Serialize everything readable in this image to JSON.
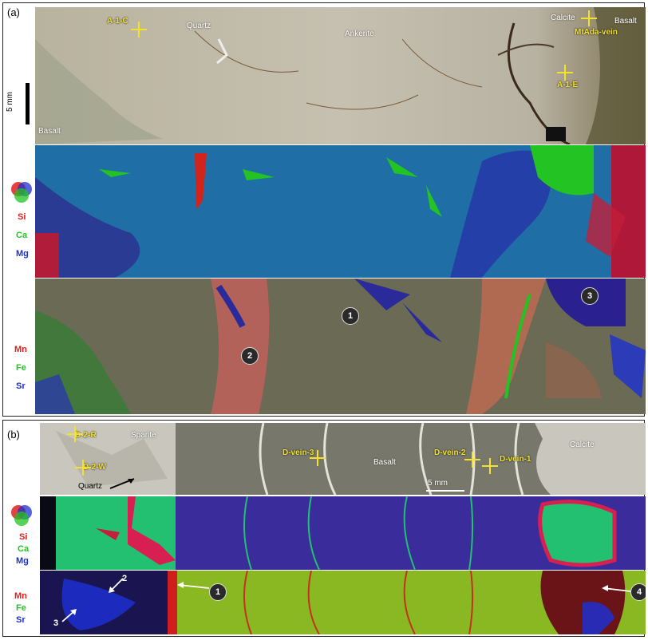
{
  "panel_a": {
    "label": "(a)",
    "scale": "5 mm",
    "photo": {
      "minerals": [
        "Quartz",
        "Ankerite",
        "Calcite",
        "Basalt",
        "Basalt"
      ],
      "spots": [
        "A-1-C",
        "MtAda-vein",
        "A-1-E"
      ]
    },
    "map1_elements": [
      "Si",
      "Ca",
      "Mg"
    ],
    "map2_elements": [
      "Mn",
      "Fe",
      "Sr"
    ],
    "zones": [
      "1",
      "2",
      "3"
    ]
  },
  "panel_b": {
    "label": "(b)",
    "scale": "5 mm",
    "photo": {
      "minerals": [
        "Sparite",
        "Quartz",
        "Basalt",
        "Calcite"
      ],
      "spots": [
        "D-2-R",
        "D-2-W",
        "D-vein-3",
        "D-vein-2",
        "D-vein-1"
      ]
    },
    "map1_elements": [
      "Si",
      "Ca",
      "Mg"
    ],
    "map2_elements": [
      "Mn",
      "Fe",
      "Sr"
    ],
    "zones": [
      "1",
      "2",
      "3",
      "4"
    ]
  },
  "colors": {
    "red": "#e0201c",
    "green": "#22c322",
    "blue": "#1d2fd0",
    "spot": "#f4e12a"
  }
}
